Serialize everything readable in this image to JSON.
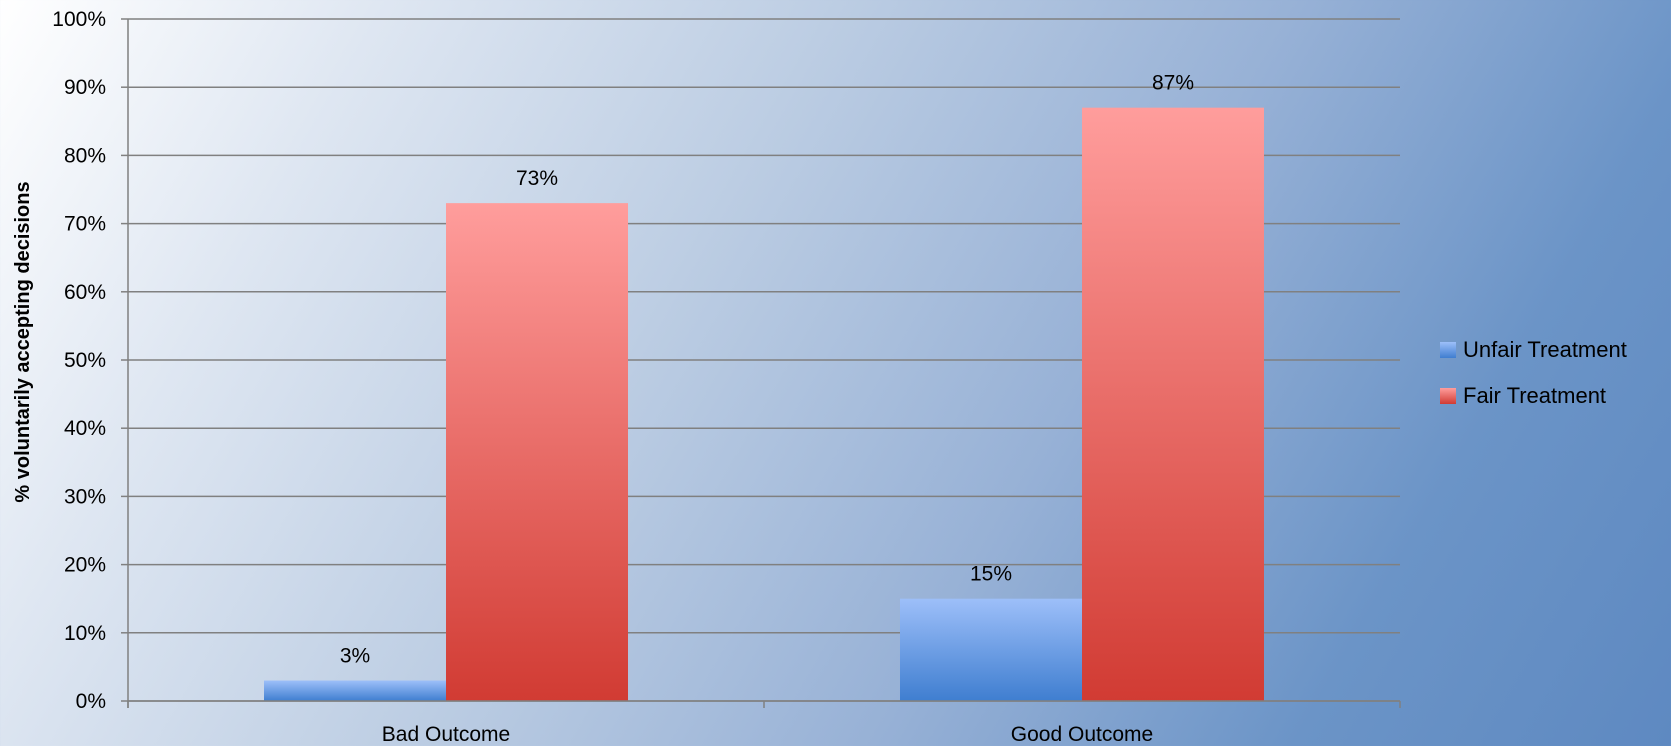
{
  "chart_data": {
    "type": "bar",
    "title": "",
    "xlabel": "",
    "ylabel": "% voluntarily accepting decisions",
    "ylim": [
      0,
      100
    ],
    "yticks": [
      "0%",
      "10%",
      "20%",
      "30%",
      "40%",
      "50%",
      "60%",
      "70%",
      "80%",
      "90%",
      "100%"
    ],
    "categories": [
      "Bad Outcome",
      "Good Outcome"
    ],
    "series": [
      {
        "name": "Unfair Treatment",
        "values": [
          3,
          15
        ],
        "labels": [
          "3%",
          "15%"
        ],
        "color_top": "#9dbff9",
        "color_bottom": "#3f7ed0"
      },
      {
        "name": "Fair Treatment",
        "values": [
          73,
          87
        ],
        "labels": [
          "73%",
          "87%"
        ],
        "color_top": "#ff9d9c",
        "color_bottom": "#d13b33"
      }
    ],
    "grid": true,
    "legend": "right"
  }
}
